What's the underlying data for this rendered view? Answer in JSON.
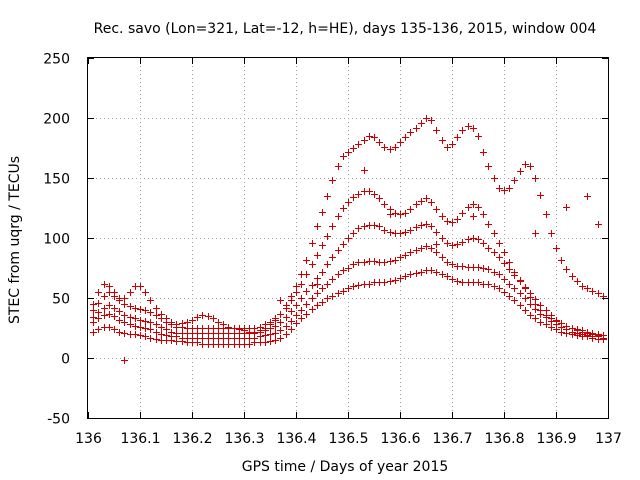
{
  "chart_data": {
    "type": "scatter",
    "title": "Rec. savo (Lon=321, Lat=-12, h=HE), days 135-136, 2015, window 004",
    "xlabel": "GPS time / Days of year 2015",
    "ylabel": "STEC from uqrg / TECUs",
    "xlim": [
      136,
      137
    ],
    "ylim": [
      -50,
      250
    ],
    "x_ticks": [
      "136",
      "136.1",
      "136.2",
      "136.3",
      "136.4",
      "136.5",
      "136.6",
      "136.7",
      "136.8",
      "136.9",
      "137"
    ],
    "y_ticks": [
      "-50",
      "0",
      "50",
      "100",
      "150",
      "200",
      "250"
    ],
    "grid": true,
    "marker": "plus",
    "color": "#cc0000",
    "series": [
      {
        "x": [
          136.01,
          136.02,
          136.03,
          136.04,
          136.05,
          136.06,
          136.07,
          136.08,
          136.09,
          136.1,
          136.11,
          136.12,
          136.13,
          136.14,
          136.15,
          136.16,
          136.17,
          136.18,
          136.19,
          136.2,
          136.21,
          136.22,
          136.23,
          136.24,
          136.25,
          136.26,
          136.27,
          136.28,
          136.29,
          136.3,
          136.31,
          136.32,
          136.33,
          136.34,
          136.35,
          136.36,
          136.37,
          136.38,
          136.39,
          136.4,
          136.41,
          136.42,
          136.43,
          136.44,
          136.45,
          136.46,
          136.47,
          136.48,
          136.49,
          136.5,
          136.51,
          136.52,
          136.53,
          136.54,
          136.55,
          136.56,
          136.57,
          136.58,
          136.59,
          136.6,
          136.61,
          136.62,
          136.63,
          136.64,
          136.65,
          136.66,
          136.67,
          136.68,
          136.69,
          136.7,
          136.71,
          136.72,
          136.73,
          136.74,
          136.75,
          136.76,
          136.77,
          136.78,
          136.79,
          136.8,
          136.81,
          136.82,
          136.83,
          136.84,
          136.85,
          136.86,
          136.87,
          136.88,
          136.89,
          136.9,
          136.91,
          136.92,
          136.93,
          136.94,
          136.95,
          136.96,
          136.97,
          136.98,
          136.99
        ],
        "y": [
          22,
          24,
          26,
          26,
          24,
          22,
          21,
          20,
          20,
          19,
          18,
          17,
          16,
          15,
          15,
          15,
          14,
          14,
          13,
          13,
          13,
          12,
          12,
          12,
          12,
          12,
          12,
          12,
          12,
          12,
          12,
          13,
          13,
          13,
          14,
          15,
          17,
          20,
          24,
          29,
          33,
          37,
          41,
          44,
          47,
          50,
          52,
          54,
          56,
          58,
          60,
          61,
          62,
          62,
          63,
          63,
          63,
          64,
          65,
          67,
          68,
          70,
          71,
          72,
          73,
          73,
          72,
          70,
          68,
          66,
          64,
          63,
          63,
          63,
          63,
          62,
          62,
          60,
          58,
          55,
          52,
          48,
          44,
          40,
          36,
          33,
          30,
          28,
          26,
          24,
          22,
          21,
          20,
          19,
          18,
          18,
          17,
          16,
          16
        ]
      },
      {
        "x": [
          136.01,
          136.02,
          136.03,
          136.04,
          136.05,
          136.06,
          136.07,
          136.08,
          136.09,
          136.1,
          136.11,
          136.12,
          136.13,
          136.14,
          136.15,
          136.16,
          136.17,
          136.18,
          136.19,
          136.2,
          136.21,
          136.22,
          136.23,
          136.24,
          136.25,
          136.26,
          136.27,
          136.28,
          136.29,
          136.3,
          136.31,
          136.32,
          136.33,
          136.34,
          136.35,
          136.36,
          136.37,
          136.38,
          136.39,
          136.4,
          136.41,
          136.42,
          136.43,
          136.44,
          136.45,
          136.46,
          136.47,
          136.48,
          136.49,
          136.5,
          136.51,
          136.52,
          136.53,
          136.54,
          136.55,
          136.56,
          136.57,
          136.58,
          136.59,
          136.6,
          136.61,
          136.62,
          136.63,
          136.64,
          136.65,
          136.66,
          136.67,
          136.68,
          136.69,
          136.7,
          136.71,
          136.72,
          136.73,
          136.74,
          136.75,
          136.76,
          136.77,
          136.78,
          136.79,
          136.8,
          136.81,
          136.82,
          136.83,
          136.84,
          136.85,
          136.86,
          136.87,
          136.88,
          136.89,
          136.9,
          136.91,
          136.92,
          136.93,
          136.94,
          136.95,
          136.96,
          136.97,
          136.98,
          136.99
        ],
        "y": [
          30,
          33,
          36,
          37,
          35,
          32,
          30,
          28,
          27,
          26,
          25,
          24,
          22,
          20,
          19,
          18,
          18,
          17,
          17,
          17,
          17,
          17,
          17,
          17,
          17,
          17,
          17,
          17,
          17,
          17,
          17,
          17,
          18,
          19,
          20,
          21,
          23,
          27,
          31,
          36,
          40,
          45,
          50,
          54,
          58,
          62,
          66,
          70,
          73,
          75,
          78,
          80,
          80,
          81,
          81,
          80,
          80,
          81,
          82,
          84,
          86,
          88,
          90,
          92,
          93,
          92,
          88,
          84,
          80,
          78,
          77,
          77,
          76,
          76,
          76,
          75,
          74,
          72,
          70,
          66,
          62,
          58,
          54,
          50,
          45,
          41,
          37,
          34,
          31,
          28,
          26,
          24,
          22,
          21,
          20,
          19,
          18,
          18,
          17
        ]
      },
      {
        "x": [
          136.01,
          136.02,
          136.03,
          136.04,
          136.05,
          136.06,
          136.07,
          136.08,
          136.09,
          136.1,
          136.11,
          136.12,
          136.13,
          136.14,
          136.15,
          136.16,
          136.17,
          136.18,
          136.19,
          136.2,
          136.21,
          136.22,
          136.23,
          136.24,
          136.25,
          136.26,
          136.27,
          136.28,
          136.29,
          136.3,
          136.31,
          136.32,
          136.33,
          136.34,
          136.35,
          136.36,
          136.37,
          136.38,
          136.39,
          136.4,
          136.41,
          136.42,
          136.43,
          136.44,
          136.45,
          136.46,
          136.47,
          136.48,
          136.49,
          136.5,
          136.51,
          136.52,
          136.53,
          136.54,
          136.55,
          136.56,
          136.57,
          136.58,
          136.59,
          136.6,
          136.61,
          136.62,
          136.63,
          136.64,
          136.65,
          136.66,
          136.67,
          136.68,
          136.69,
          136.7,
          136.71,
          136.72,
          136.73,
          136.74,
          136.75,
          136.76,
          136.77,
          136.78,
          136.79,
          136.8,
          136.81,
          136.82,
          136.83,
          136.84,
          136.85,
          136.86,
          136.87,
          136.88,
          136.89,
          136.9,
          136.91,
          136.92,
          136.93,
          136.94,
          136.95,
          136.96,
          136.97,
          136.98,
          136.99
        ],
        "y": [
          34,
          38,
          42,
          44,
          42,
          39,
          36,
          34,
          33,
          32,
          31,
          30,
          28,
          26,
          24,
          22,
          21,
          21,
          21,
          21,
          21,
          21,
          21,
          21,
          21,
          21,
          21,
          21,
          21,
          21,
          21,
          21,
          22,
          23,
          25,
          27,
          30,
          34,
          39,
          44,
          50,
          56,
          61,
          67,
          72,
          78,
          84,
          90,
          95,
          100,
          104,
          108,
          110,
          111,
          111,
          110,
          107,
          105,
          104,
          104,
          105,
          107,
          109,
          111,
          112,
          110,
          105,
          100,
          96,
          94,
          95,
          97,
          99,
          100,
          99,
          96,
          92,
          88,
          84,
          79,
          74,
          69,
          64,
          59,
          54,
          49,
          44,
          40,
          36,
          32,
          29,
          27,
          25,
          23,
          22,
          21,
          20,
          19,
          19
        ]
      },
      {
        "x": [
          136.01,
          136.02,
          136.03,
          136.04,
          136.05,
          136.06,
          136.07,
          136.08,
          136.09,
          136.1,
          136.11,
          136.12,
          136.13,
          136.14,
          136.15,
          136.16,
          136.17,
          136.18,
          136.19,
          136.2,
          136.21,
          136.22,
          136.23,
          136.24,
          136.25,
          136.26,
          136.27,
          136.28,
          136.29,
          136.3,
          136.31,
          136.32,
          136.33,
          136.34,
          136.35,
          136.36,
          136.37,
          136.38,
          136.39,
          136.4,
          136.41,
          136.42,
          136.43,
          136.44,
          136.45,
          136.46,
          136.47,
          136.48,
          136.49,
          136.5,
          136.51,
          136.52,
          136.53,
          136.54,
          136.55,
          136.56,
          136.57,
          136.58,
          136.59,
          136.6,
          136.61,
          136.62,
          136.63,
          136.64,
          136.65,
          136.66,
          136.67,
          136.68,
          136.69,
          136.7,
          136.71,
          136.72,
          136.73,
          136.74,
          136.75,
          136.76,
          136.77,
          136.78,
          136.79,
          136.8,
          136.81,
          136.82,
          136.83,
          136.84,
          136.85,
          136.86,
          136.87,
          136.88,
          136.89,
          136.9,
          136.91,
          136.92,
          136.93,
          136.94,
          136.95,
          136.96,
          136.97,
          136.98,
          136.99
        ],
        "y": [
          40,
          46,
          52,
          55,
          52,
          48,
          45,
          43,
          42,
          41,
          40,
          38,
          36,
          33,
          30,
          28,
          26,
          26,
          25,
          25,
          25,
          25,
          25,
          25,
          25,
          25,
          25,
          25,
          25,
          25,
          25,
          25,
          26,
          28,
          30,
          33,
          37,
          42,
          48,
          55,
          62,
          70,
          78,
          86,
          94,
          102,
          110,
          118,
          125,
          130,
          134,
          137,
          139,
          139,
          137,
          133,
          128,
          124,
          121,
          120,
          121,
          124,
          128,
          131,
          133,
          130,
          124,
          118,
          114,
          113,
          116,
          121,
          126,
          128,
          126,
          120,
          112,
          104,
          96,
          88,
          80,
          72,
          65,
          58,
          51,
          45,
          40,
          36,
          33,
          31,
          29,
          27,
          25,
          24,
          23,
          22,
          21,
          20,
          19
        ]
      },
      {
        "x": [
          136.01,
          136.02,
          136.03,
          136.04,
          136.05,
          136.06,
          136.07,
          136.08,
          136.09,
          136.1,
          136.11,
          136.12,
          136.13,
          136.14,
          136.15,
          136.16,
          136.17,
          136.18,
          136.19,
          136.2,
          136.21,
          136.22,
          136.23,
          136.24,
          136.25,
          136.26,
          136.27,
          136.28,
          136.29,
          136.3,
          136.31,
          136.32,
          136.33,
          136.34,
          136.35,
          136.36,
          136.37,
          136.38,
          136.39,
          136.4,
          136.41,
          136.42,
          136.43,
          136.44,
          136.45,
          136.46,
          136.47,
          136.48,
          136.49,
          136.5,
          136.51,
          136.52,
          136.53,
          136.54,
          136.55,
          136.56,
          136.57,
          136.58,
          136.59,
          136.6,
          136.61,
          136.62,
          136.63,
          136.64,
          136.65,
          136.66,
          136.67,
          136.68,
          136.69,
          136.7,
          136.71,
          136.72,
          136.73,
          136.74,
          136.75,
          136.76,
          136.77,
          136.78,
          136.79,
          136.8,
          136.81,
          136.82,
          136.83,
          136.84,
          136.85,
          136.86,
          136.87,
          136.88,
          136.89,
          136.9,
          136.91,
          136.92,
          136.93,
          136.94,
          136.95,
          136.96,
          136.97,
          136.98,
          136.99
        ],
        "y": [
          45,
          55,
          62,
          60,
          55,
          50,
          50,
          55,
          60,
          60,
          55,
          48,
          42,
          37,
          33,
          30,
          28,
          29,
          30,
          32,
          34,
          36,
          35,
          33,
          30,
          28,
          26,
          25,
          24,
          23,
          22,
          22,
          23,
          25,
          28,
          32,
          37,
          44,
          52,
          60,
          70,
          82,
          96,
          110,
          122,
          135,
          148,
          160,
          168,
          172,
          175,
          178,
          182,
          185,
          184,
          180,
          176,
          174,
          176,
          180,
          184,
          188,
          192,
          196,
          200,
          198,
          190,
          182,
          176,
          178,
          184,
          190,
          193,
          192,
          185,
          172,
          160,
          150,
          142,
          140,
          142,
          148,
          156,
          162,
          160,
          150,
          136,
          120,
          104,
          92,
          82,
          74,
          68,
          64,
          60,
          58,
          56,
          54,
          52
        ]
      },
      {
        "x": [
          136.07,
          136.3,
          136.37,
          136.44,
          136.53,
          136.58,
          136.67,
          136.74,
          136.86,
          136.92,
          136.96,
          136.98
        ],
        "y": [
          -2,
          12,
          48,
          62,
          157,
          120,
          95,
          118,
          104,
          126,
          135,
          112
        ]
      }
    ]
  }
}
